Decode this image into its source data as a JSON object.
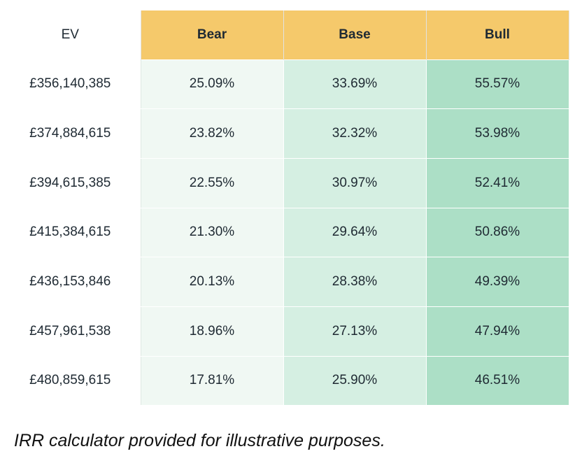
{
  "table": {
    "header": [
      "EV",
      "Bear",
      "Base",
      "Bull"
    ],
    "rows": [
      [
        "£356,140,385",
        "25.09%",
        "33.69%",
        "55.57%"
      ],
      [
        "£374,884,615",
        "23.82%",
        "32.32%",
        "53.98%"
      ],
      [
        "£394,615,385",
        "22.55%",
        "30.97%",
        "52.41%"
      ],
      [
        "£415,384,615",
        "21.30%",
        "29.64%",
        "50.86%"
      ],
      [
        "£436,153,846",
        "20.13%",
        "28.38%",
        "49.39%"
      ],
      [
        "£457,961,538",
        "18.96%",
        "27.13%",
        "47.94%"
      ],
      [
        "£480,859,615",
        "17.81%",
        "25.90%",
        "46.51%"
      ]
    ]
  },
  "footer": "IRR calculator provided for illustrative purposes."
}
